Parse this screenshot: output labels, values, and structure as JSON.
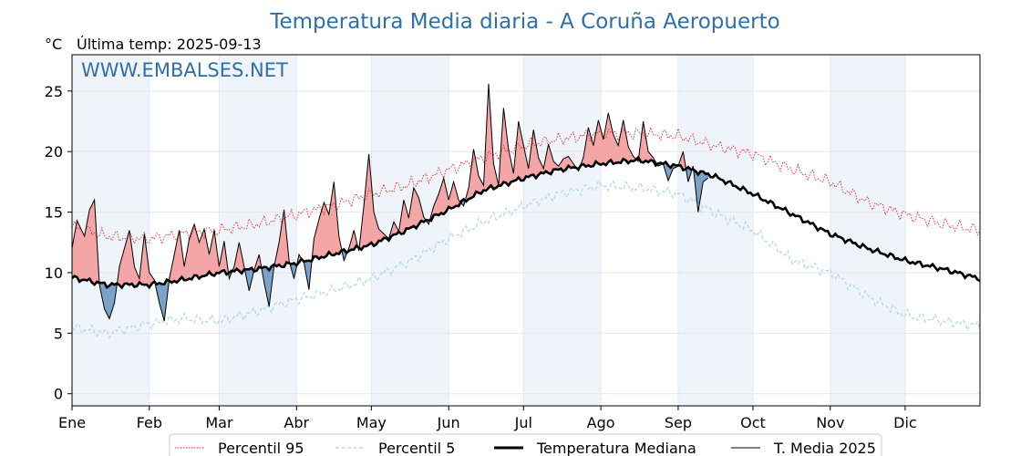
{
  "title": "Temperatura Media diaria - A Coruña Aeropuerto",
  "unit_label": "°C",
  "last_temp_label": "Última temp: 2025-09-13",
  "watermark": "WWW.EMBALSES.NET",
  "chart_data": {
    "type": "line",
    "x_unit": "day of year",
    "xlim": [
      1,
      365
    ],
    "ylim": [
      -1,
      28
    ],
    "yticks": [
      0,
      5,
      10,
      15,
      20,
      25
    ],
    "grid": true,
    "legend_position": "bottom-center",
    "months": [
      {
        "label": "Ene",
        "start_day": 1
      },
      {
        "label": "Feb",
        "start_day": 32
      },
      {
        "label": "Mar",
        "start_day": 60
      },
      {
        "label": "Abr",
        "start_day": 91
      },
      {
        "label": "May",
        "start_day": 121
      },
      {
        "label": "Jun",
        "start_day": 152
      },
      {
        "label": "Jul",
        "start_day": 182
      },
      {
        "label": "Ago",
        "start_day": 213
      },
      {
        "label": "Sep",
        "start_day": 244
      },
      {
        "label": "Oct",
        "start_day": 274
      },
      {
        "label": "Nov",
        "start_day": 305
      },
      {
        "label": "Dic",
        "start_day": 335
      }
    ],
    "series": [
      {
        "name": "Percentil 95",
        "style": "dotted",
        "color": "#e8262a",
        "points": [
          [
            1,
            13.8
          ],
          [
            15,
            13.0
          ],
          [
            32,
            12.8
          ],
          [
            45,
            13.2
          ],
          [
            60,
            13.5
          ],
          [
            75,
            14.0
          ],
          [
            91,
            14.8
          ],
          [
            105,
            15.5
          ],
          [
            121,
            16.5
          ],
          [
            135,
            17.2
          ],
          [
            152,
            18.5
          ],
          [
            166,
            19.5
          ],
          [
            182,
            20.5
          ],
          [
            196,
            21.0
          ],
          [
            213,
            21.5
          ],
          [
            228,
            21.5
          ],
          [
            244,
            21.3
          ],
          [
            258,
            20.5
          ],
          [
            274,
            19.8
          ],
          [
            290,
            18.5
          ],
          [
            305,
            17.5
          ],
          [
            320,
            15.8
          ],
          [
            335,
            14.8
          ],
          [
            350,
            14.0
          ],
          [
            365,
            13.5
          ]
        ]
      },
      {
        "name": "Percentil 5",
        "style": "dashed",
        "color": "#add8e6",
        "points": [
          [
            1,
            5.5
          ],
          [
            15,
            5.0
          ],
          [
            32,
            5.8
          ],
          [
            45,
            6.2
          ],
          [
            60,
            6.0
          ],
          [
            75,
            6.8
          ],
          [
            91,
            7.8
          ],
          [
            105,
            8.5
          ],
          [
            121,
            9.5
          ],
          [
            135,
            10.8
          ],
          [
            152,
            12.8
          ],
          [
            166,
            14.2
          ],
          [
            182,
            15.5
          ],
          [
            196,
            16.5
          ],
          [
            213,
            17.2
          ],
          [
            228,
            17.0
          ],
          [
            244,
            16.5
          ],
          [
            258,
            15.0
          ],
          [
            274,
            13.5
          ],
          [
            290,
            11.0
          ],
          [
            305,
            10.0
          ],
          [
            320,
            8.0
          ],
          [
            335,
            6.5
          ],
          [
            350,
            6.0
          ],
          [
            365,
            5.6
          ]
        ]
      },
      {
        "name": "Temperatura Mediana",
        "style": "solid-thick",
        "color": "#000000",
        "points": [
          [
            1,
            9.6
          ],
          [
            15,
            9.0
          ],
          [
            32,
            9.0
          ],
          [
            45,
            9.4
          ],
          [
            60,
            10.0
          ],
          [
            75,
            10.3
          ],
          [
            91,
            10.8
          ],
          [
            105,
            11.5
          ],
          [
            121,
            12.3
          ],
          [
            135,
            13.5
          ],
          [
            152,
            15.2
          ],
          [
            166,
            16.8
          ],
          [
            182,
            17.8
          ],
          [
            196,
            18.5
          ],
          [
            213,
            19.0
          ],
          [
            228,
            19.3
          ],
          [
            244,
            18.8
          ],
          [
            258,
            18.0
          ],
          [
            274,
            16.5
          ],
          [
            290,
            14.8
          ],
          [
            305,
            13.2
          ],
          [
            320,
            12.0
          ],
          [
            335,
            11.0
          ],
          [
            350,
            10.3
          ],
          [
            365,
            9.5
          ]
        ]
      },
      {
        "name": "T. Media 2025",
        "style": "solid-thin",
        "color": "#000000",
        "points": [
          [
            1,
            12
          ],
          [
            3,
            14.3
          ],
          [
            6,
            13
          ],
          [
            8,
            15.2
          ],
          [
            10,
            16
          ],
          [
            12,
            9
          ],
          [
            14,
            7
          ],
          [
            16,
            6.2
          ],
          [
            18,
            7.5
          ],
          [
            20,
            10.5
          ],
          [
            22,
            12
          ],
          [
            24,
            13.5
          ],
          [
            26,
            10.5
          ],
          [
            28,
            9.5
          ],
          [
            30,
            13.2
          ],
          [
            32,
            10
          ],
          [
            34,
            9.4
          ],
          [
            36,
            7.5
          ],
          [
            38,
            6
          ],
          [
            40,
            9.5
          ],
          [
            42,
            11.5
          ],
          [
            44,
            13.5
          ],
          [
            46,
            10.5
          ],
          [
            48,
            12.8
          ],
          [
            50,
            14
          ],
          [
            52,
            12.5
          ],
          [
            54,
            13.6
          ],
          [
            56,
            11.5
          ],
          [
            58,
            13.5
          ],
          [
            60,
            10.5
          ],
          [
            62,
            12.6
          ],
          [
            64,
            9.5
          ],
          [
            66,
            10.5
          ],
          [
            68,
            12.5
          ],
          [
            70,
            10.5
          ],
          [
            72,
            8.5
          ],
          [
            74,
            10.2
          ],
          [
            76,
            11.5
          ],
          [
            78,
            9.2
          ],
          [
            80,
            7.2
          ],
          [
            82,
            10.5
          ],
          [
            84,
            12.5
          ],
          [
            86,
            15.2
          ],
          [
            88,
            11
          ],
          [
            90,
            9.5
          ],
          [
            92,
            11.5
          ],
          [
            94,
            10.8
          ],
          [
            96,
            8.6
          ],
          [
            98,
            12.8
          ],
          [
            100,
            14.4
          ],
          [
            102,
            15.8
          ],
          [
            104,
            14.8
          ],
          [
            106,
            17.5
          ],
          [
            108,
            13
          ],
          [
            110,
            11
          ],
          [
            112,
            12
          ],
          [
            114,
            13.5
          ],
          [
            116,
            11.8
          ],
          [
            118,
            15.5
          ],
          [
            120,
            19.8
          ],
          [
            122,
            15
          ],
          [
            124,
            13.6
          ],
          [
            126,
            13.2
          ],
          [
            128,
            12.8
          ],
          [
            130,
            14.2
          ],
          [
            132,
            13.4
          ],
          [
            134,
            16
          ],
          [
            136,
            14.5
          ],
          [
            138,
            17
          ],
          [
            140,
            16.2
          ],
          [
            142,
            14.6
          ],
          [
            144,
            14
          ],
          [
            146,
            15.5
          ],
          [
            148,
            16.5
          ],
          [
            150,
            17.8
          ],
          [
            152,
            16
          ],
          [
            154,
            17.5
          ],
          [
            156,
            16
          ],
          [
            158,
            15.5
          ],
          [
            160,
            17
          ],
          [
            162,
            20.2
          ],
          [
            164,
            18
          ],
          [
            166,
            17.2
          ],
          [
            168,
            25.6
          ],
          [
            170,
            19
          ],
          [
            172,
            17.2
          ],
          [
            174,
            23.6
          ],
          [
            176,
            20.2
          ],
          [
            178,
            18.2
          ],
          [
            180,
            22.5
          ],
          [
            182,
            20.5
          ],
          [
            184,
            18.6
          ],
          [
            186,
            21.8
          ],
          [
            188,
            19.5
          ],
          [
            190,
            18.6
          ],
          [
            192,
            20.6
          ],
          [
            194,
            19.2
          ],
          [
            196,
            18.8
          ],
          [
            198,
            19.4
          ],
          [
            200,
            19.6
          ],
          [
            202,
            19
          ],
          [
            204,
            18.4
          ],
          [
            206,
            19.5
          ],
          [
            208,
            22
          ],
          [
            210,
            20.5
          ],
          [
            212,
            22.6
          ],
          [
            214,
            21
          ],
          [
            216,
            23.2
          ],
          [
            218,
            21.4
          ],
          [
            220,
            20.5
          ],
          [
            222,
            22.6
          ],
          [
            224,
            20.4
          ],
          [
            226,
            19.6
          ],
          [
            228,
            19.2
          ],
          [
            230,
            22.5
          ],
          [
            232,
            20
          ],
          [
            234,
            19.5
          ],
          [
            236,
            18.8
          ],
          [
            238,
            19
          ],
          [
            240,
            17.6
          ],
          [
            242,
            18.6
          ],
          [
            244,
            18.8
          ],
          [
            246,
            20
          ],
          [
            248,
            17.5
          ],
          [
            250,
            18.8
          ],
          [
            252,
            15
          ],
          [
            254,
            17.5
          ],
          [
            256,
            17.8
          ]
        ]
      }
    ],
    "legend": [
      {
        "label": "Percentil 95",
        "style": "dotted",
        "color": "#e8262a"
      },
      {
        "label": "Percentil 5",
        "style": "dashed",
        "color": "#add8e6"
      },
      {
        "label": "Temperatura Mediana",
        "style": "solid-thick",
        "color": "#000000"
      },
      {
        "label": "T. Media 2025",
        "style": "solid-thin",
        "color": "#000000"
      }
    ],
    "fill_above_color": "#f4a6a6",
    "fill_below_color": "#7aa3c7",
    "alt_band_color": "#eef4fa"
  }
}
